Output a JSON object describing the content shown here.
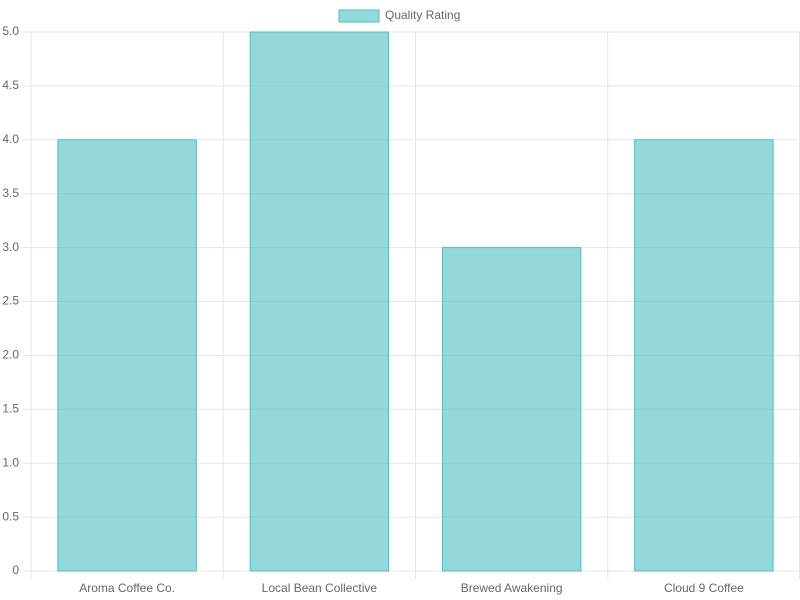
{
  "chart_data": {
    "type": "bar",
    "categories": [
      "Aroma Coffee Co.",
      "Local Bean Collective",
      "Brewed Awakening",
      "Cloud 9 Coffee"
    ],
    "series": [
      {
        "name": "Quality Rating",
        "color": "#4bc0c0",
        "values": [
          4,
          5,
          3,
          4
        ]
      }
    ],
    "ylim": [
      0,
      5
    ],
    "yticks": [
      0,
      0.5,
      {
        "value": 1,
        "label": "1.0"
      },
      1.5,
      {
        "value": 2,
        "label": "2.0"
      },
      2.5,
      {
        "value": 3,
        "label": "3.0"
      },
      3.5,
      {
        "value": 4,
        "label": "4.0"
      },
      4.5,
      {
        "value": 5,
        "label": "5.0"
      }
    ],
    "grid": true,
    "legend": "top"
  }
}
